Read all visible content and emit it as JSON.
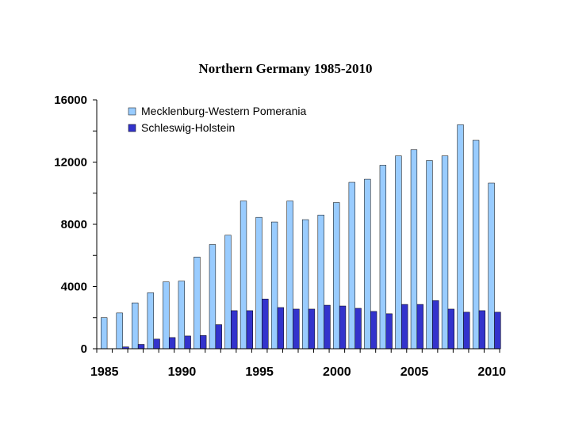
{
  "chart_data": {
    "type": "bar",
    "title": "Northern Germany 1985-2010",
    "xlabel": "",
    "ylabel": "",
    "x": [
      1985,
      1986,
      1987,
      1988,
      1989,
      1990,
      1991,
      1992,
      1993,
      1994,
      1995,
      1996,
      1997,
      1998,
      1999,
      2000,
      2001,
      2002,
      2003,
      2004,
      2005,
      2006,
      2007,
      2008,
      2009,
      2010
    ],
    "x_tick_labels": [
      "1985",
      "1990",
      "1995",
      "2000",
      "2005",
      "2010"
    ],
    "y_tick_labels": [
      "0",
      "4000",
      "8000",
      "12000",
      "16000"
    ],
    "ylim": [
      0,
      16000
    ],
    "legend_position": "top-left",
    "grid": false,
    "series": [
      {
        "name": "Mecklenburg-Western Pomerania",
        "color": "#99ccff",
        "values": [
          2000,
          2300,
          2950,
          3600,
          4300,
          4350,
          5900,
          6700,
          7300,
          9500,
          8450,
          8150,
          9500,
          8300,
          8600,
          9400,
          10700,
          10900,
          11800,
          12400,
          12800,
          12100,
          12400,
          14400,
          13400,
          10650
        ]
      },
      {
        "name": "Schleswig-Holstein",
        "color": "#3333cc",
        "values": [
          0,
          120,
          280,
          620,
          720,
          820,
          850,
          1550,
          2450,
          2450,
          3200,
          2650,
          2550,
          2550,
          2800,
          2750,
          2600,
          2400,
          2250,
          2850,
          2850,
          3100,
          2550,
          2350,
          2450,
          2350
        ]
      }
    ]
  }
}
